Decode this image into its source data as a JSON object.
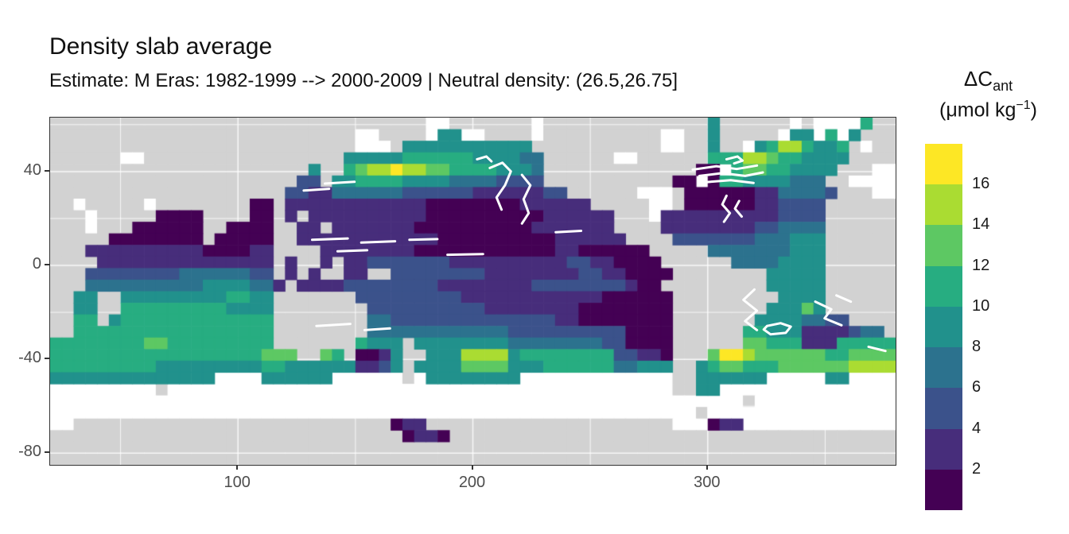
{
  "header": {
    "title": "Density slab average",
    "subtitle": "Estimate: M Eras: 1982-1999 --> 2000-2009 | Neutral density: (26.5,26.75]"
  },
  "axes": {
    "x_tick_labels": [
      "100",
      "200",
      "300"
    ],
    "y_tick_labels": [
      "40",
      "0",
      "-40",
      "-80"
    ]
  },
  "legend": {
    "title_main": "ΔC",
    "title_sub": "ant",
    "units_pre": "(μmol kg",
    "units_sup": "−1",
    "units_post": ")",
    "tick_labels": [
      "16",
      "14",
      "12",
      "10",
      "8",
      "6",
      "4",
      "2"
    ]
  },
  "chart_data": {
    "type": "heatmap",
    "title": "Density slab average",
    "subtitle": "Estimate: M Eras: 1982-1999 --> 2000-2009 | Neutral density: (26.5,26.75]",
    "variable": "ΔC_ant (μmol kg−1)",
    "map_projection": "equirectangular, Pacific-centered",
    "lon_range": [
      20,
      380
    ],
    "lat_range": [
      63,
      -85
    ],
    "x_ticks": [
      100,
      200,
      300
    ],
    "x_minor_ticks": [
      50,
      150,
      250,
      350
    ],
    "y_ticks": [
      40,
      0,
      -40,
      -80
    ],
    "y_minor_ticks": [
      60,
      20,
      -20,
      -60
    ],
    "grid_on": true,
    "legend_position": "right",
    "bin_width": 2,
    "bins": [
      {
        "symbol": "0",
        "min": 0,
        "max": 2,
        "color": "#440154"
      },
      {
        "symbol": "1",
        "min": 2,
        "max": 4,
        "color": "#472D7B"
      },
      {
        "symbol": "2",
        "min": 4,
        "max": 6,
        "color": "#3B528B"
      },
      {
        "symbol": "3",
        "min": 6,
        "max": 8,
        "color": "#2C728E"
      },
      {
        "symbol": "4",
        "min": 8,
        "max": 10,
        "color": "#21918C"
      },
      {
        "symbol": "5",
        "min": 10,
        "max": 12,
        "color": "#27AD81"
      },
      {
        "symbol": "6",
        "min": 12,
        "max": 14,
        "color": "#5DC863"
      },
      {
        "symbol": "7",
        "min": 14,
        "max": 16,
        "color": "#AADC32"
      },
      {
        "symbol": "8",
        "min": 16,
        "max": 18,
        "color": "#FDE725"
      }
    ],
    "land_color": "#D2D2D2",
    "no_data_color": "#FFFFFF",
    "gridline_color": "rgba(255,255,255,0.85)",
    "raster": {
      "cols": 72,
      "rows": 30,
      "cell_deg_lon": 5,
      "cell_deg_lat": 4.933,
      "origin": "lon 20E at left edge, lat 63N at top edge",
      "encoding": "digits 0-8 = ΔCant value bins low to high, L = land, . = ocean with no data",
      "grid": [
        "LLLLLLLLLLLLLLLLLLLLLLLLLLLLLLLL..LLLLLLL.LLLLLLLLLLLLLL4LLLLLL.L....5LL",
        "LLLLLLLLLLLLLLLLLLLLLLLLLL..LLLL.44..LLLL.LLLLLLLLLL..LL4LLLLL.44.5.4LLL",
        "LLLLLLLLLLLLLLLLLLLLLLLLLL...L44444444444LLLLLLLLLLL..LL4LL.45775445L.LL",
        "LLLLLL..LLLLLLLLLLLLLLLLL44444555555444433LLLLLL..LLLLLL555776554444LLLL",
        "LLLLLLLLLLLLLLLLLLLLLL4LL56778776655554443LLLLLLLLLLLLL00.566554444LLL..",
        "LLLLLLLLLLLLLLLLLLLLL22L445555444433332222LLLLLLLLLLL00.0554444333LL....",
        "LLLLLLLLLLLLLLLLLLLL221133333322222211111122LLLLLL...L0000001133332LLL..",
        "LL.LLLLL.LLLLLLLL00L11111111111100000000111111LLLLL..L000000112222LLLLLL",
        "LLL.LLLLL0000LLLL00L1L11111111110000000000111111LLL.11111111112222LLLLLL",
        "LLL.LLL000000LL0000LL11L111111100000000001111111LLLL11111111223333LLLLLL",
        "LLLLL00000000L00000LL1111111111110000000000111111LLLL2222222333444LLLLLL",
        "LLL1111111111000011LLLL1111111100000000000011000000LLLLL3333333444LLLLLL",
        "LLLL111111111111111L1LL1L112222222111111111122110000LLLLLL33334444LLLLLL",
        "LLL2222222233333322L1L1LL11LL222222221111111122110000LLLLLLLL44444LLLLLL",
        "LLL33333333334444331L1111222222221111111122222222100LLLLLLLLL44444LLLLLL",
        "LL44LL4444444445544LLLLLLL222222222111111111111000000LLLLLLLLL4444LLLLLL",
        "LL44LL5555555554444LLLLLLLL22222222221111111100000000LLLLLLLL44464LLLLLL",
        "LL55L45555555555555LLLLLLLL33222222222222221100000000LLLLLLL44443322LLLL",
        "LL55555555555555555LLLLLLLL33333333333322222222220000LLLLLL554441111233L",
        "5555555566555555555LLLLLLL5444L4444444433333333220000LLLLLL6655511155555",
        "555555555555555555666LL65L0014LL444777745555555522110LLL6887666666556666",
        "555555555444444444554444441124L4444666644455555533444LL45665556666667777",
        "44444444444444....444444......L.44444444.............LL444444.....44....",
        ".........L...........................................LL44...............",
        "...........................................................L............",
        ".......................................................L................",
        "..LLLLLLLLLLLLLLLLLLLLLLLLLLL011LLLLLLLLLLLLLLLLLLLLL...011.............",
        "LLLLLLLLLLLLLLLLLLLLLLLLLLLLLL0110LLLLLLLLLLLLLLLLLLLLLLLLLLLLLLLLLLLLLL",
        "LLLLLLLLLLLLLLLLLLLLLLLLLLLLLLLLLLLLLLLLLLLLLLLLLLLLLLLLLLLLLLLLLLLLLLLL",
        "LLLLLLLLLLLLLLLLLLLLLLLLLLLLLLLLLLLLLLLLLLLLLLLLLLLLLLLLLLLLLLLLLLLLLLLL"
      ]
    },
    "contours": {
      "color": "#FFFFFF",
      "lines": [
        [
          [
            0.52,
            0.145
          ],
          [
            0.535,
            0.13
          ],
          [
            0.545,
            0.155
          ],
          [
            0.538,
            0.195
          ],
          [
            0.528,
            0.23
          ],
          [
            0.534,
            0.265
          ]
        ],
        [
          [
            0.558,
            0.165
          ],
          [
            0.568,
            0.195
          ],
          [
            0.56,
            0.235
          ],
          [
            0.566,
            0.275
          ],
          [
            0.558,
            0.305
          ]
        ],
        [
          [
            0.505,
            0.12
          ],
          [
            0.516,
            0.112
          ],
          [
            0.522,
            0.126
          ]
        ],
        [
          [
            0.31,
            0.352
          ],
          [
            0.352,
            0.348
          ]
        ],
        [
          [
            0.368,
            0.36
          ],
          [
            0.408,
            0.356
          ]
        ],
        [
          [
            0.425,
            0.352
          ],
          [
            0.458,
            0.35
          ]
        ],
        [
          [
            0.34,
            0.385
          ],
          [
            0.375,
            0.382
          ]
        ],
        [
          [
            0.47,
            0.395
          ],
          [
            0.512,
            0.393
          ]
        ],
        [
          [
            0.598,
            0.33
          ],
          [
            0.628,
            0.326
          ]
        ],
        [
          [
            0.325,
            0.19
          ],
          [
            0.36,
            0.185
          ]
        ],
        [
          [
            0.3,
            0.21
          ],
          [
            0.33,
            0.205
          ]
        ],
        [
          [
            0.315,
            0.6
          ],
          [
            0.355,
            0.594
          ]
        ],
        [
          [
            0.372,
            0.612
          ],
          [
            0.402,
            0.607
          ]
        ],
        [
          [
            0.76,
            0.15
          ],
          [
            0.788,
            0.14
          ],
          [
            0.812,
            0.148
          ],
          [
            0.836,
            0.138
          ]
        ],
        [
          [
            0.768,
            0.168
          ],
          [
            0.795,
            0.16
          ],
          [
            0.822,
            0.168
          ],
          [
            0.843,
            0.158
          ]
        ],
        [
          [
            0.775,
            0.186
          ],
          [
            0.805,
            0.18
          ],
          [
            0.832,
            0.188
          ]
        ],
        [
          [
            0.8,
            0.12
          ],
          [
            0.813,
            0.112
          ],
          [
            0.819,
            0.124
          ],
          [
            0.809,
            0.132
          ]
        ],
        [
          [
            0.8,
            0.225
          ],
          [
            0.795,
            0.25
          ],
          [
            0.804,
            0.275
          ],
          [
            0.797,
            0.3
          ]
        ],
        [
          [
            0.815,
            0.24
          ],
          [
            0.81,
            0.262
          ],
          [
            0.818,
            0.285
          ]
        ],
        [
          [
            0.833,
            0.495
          ],
          [
            0.82,
            0.525
          ],
          [
            0.836,
            0.556
          ],
          [
            0.822,
            0.586
          ],
          [
            0.836,
            0.612
          ]
        ],
        [
          [
            0.848,
            0.6
          ],
          [
            0.864,
            0.592
          ],
          [
            0.876,
            0.602
          ],
          [
            0.87,
            0.62
          ],
          [
            0.852,
            0.624
          ],
          [
            0.844,
            0.61
          ],
          [
            0.848,
            0.6
          ]
        ],
        [
          [
            0.905,
            0.53
          ],
          [
            0.924,
            0.552
          ],
          [
            0.916,
            0.578
          ],
          [
            0.936,
            0.598
          ]
        ],
        [
          [
            0.93,
            0.512
          ],
          [
            0.947,
            0.53
          ]
        ],
        [
          [
            0.968,
            0.66
          ],
          [
            0.988,
            0.672
          ]
        ]
      ]
    }
  }
}
